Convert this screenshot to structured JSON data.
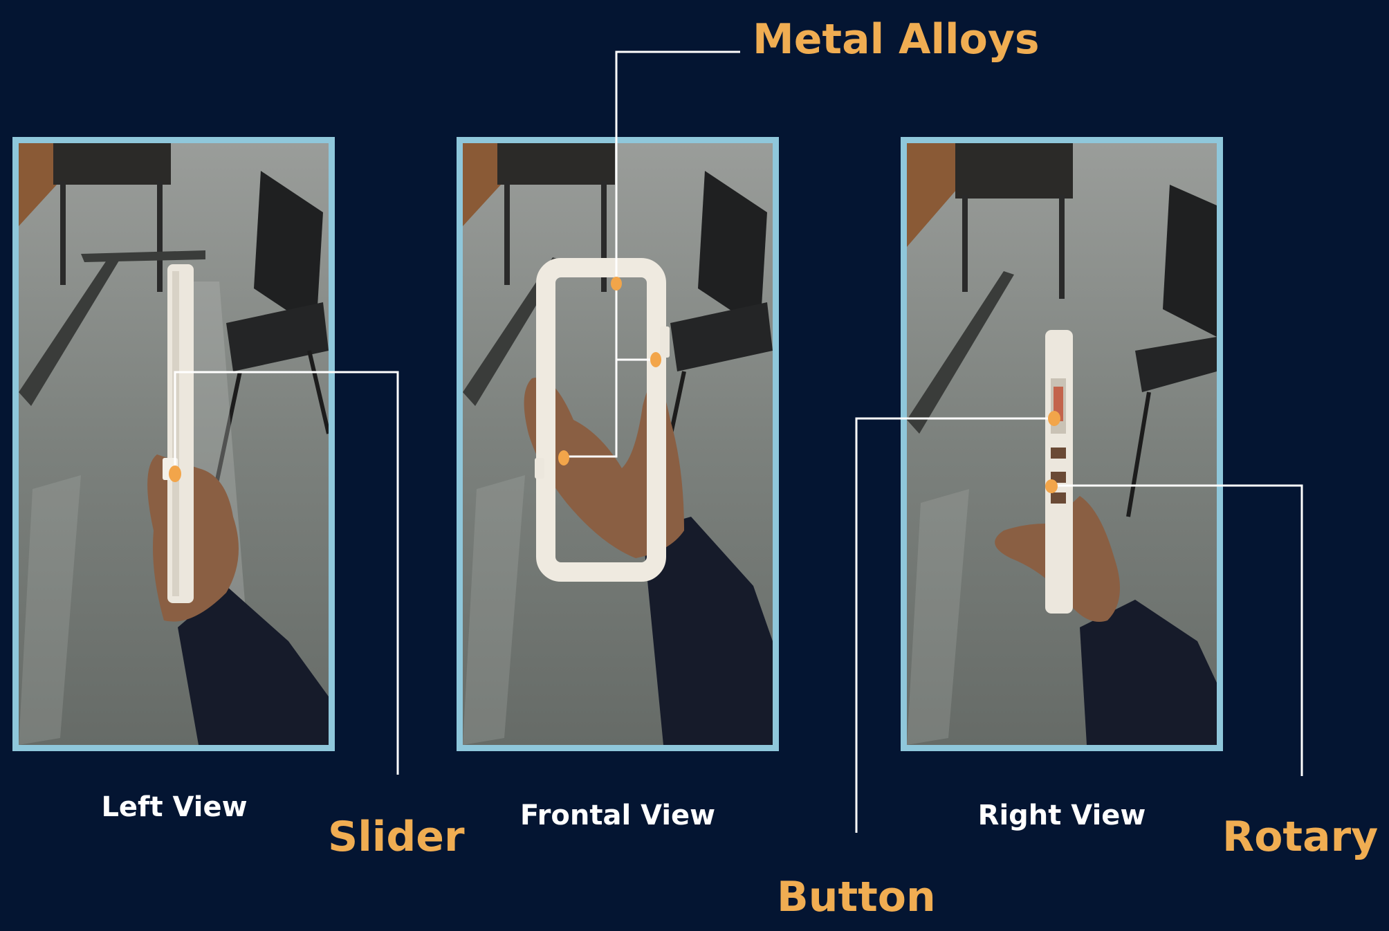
{
  "views": {
    "left": "Left View",
    "frontal": "Frontal View",
    "right": "Right View"
  },
  "callouts": {
    "metal_alloys": "Metal Alloys",
    "slider": "Slider",
    "button": "Button",
    "rotary": "Rotary"
  },
  "colors": {
    "background": "#041532",
    "frame_border": "#8fc7db",
    "callout_text": "#f0ad52",
    "caption_text": "#ffffff",
    "leader_line": "#ffffff",
    "marker": "#f2a54a"
  }
}
